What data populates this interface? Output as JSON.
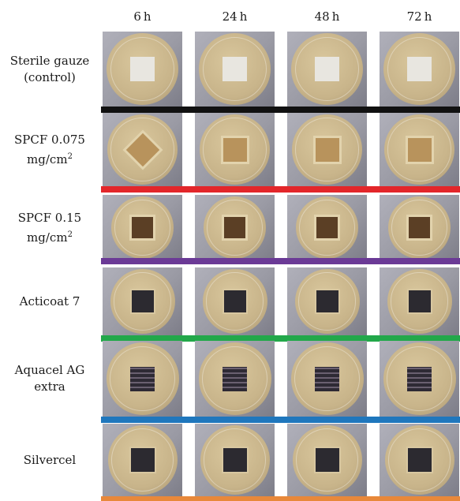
{
  "columns": [
    "6 h",
    "24 h",
    "48 h",
    "72 h"
  ],
  "rows": [
    {
      "label_lines": [
        "Sterile gauze",
        "(control)"
      ],
      "divider_color": "#111111",
      "sample": "white"
    },
    {
      "label_lines": [
        "SPCF 0.075",
        "mg/cm"
      ],
      "label_sup": "2",
      "divider_color": "#e3262a",
      "sample": "tan"
    },
    {
      "label_lines": [
        "SPCF 0.15",
        "mg/cm"
      ],
      "label_sup": "2",
      "divider_color": "#6b3a96",
      "sample": "brown"
    },
    {
      "label_lines": [
        "Acticoat 7"
      ],
      "divider_color": "#22a84a",
      "sample": "dark"
    },
    {
      "label_lines": [
        "Aquacel AG",
        "extra"
      ],
      "divider_color": "#1f77bd",
      "sample": "striped"
    },
    {
      "label_lines": [
        "Silvercel"
      ],
      "divider_color": "#e8883a",
      "sample": "dark"
    }
  ],
  "colors": {
    "photo_background": "#9a9aa4",
    "agar": "#c8b48a",
    "agar_rim": "#a89570",
    "sample_white": "#e8e6e0",
    "sample_tan": "#b8935c",
    "sample_brown": "#5b3f25",
    "sample_dark": "#2c2a30",
    "sample_striped": "#3a3540"
  }
}
